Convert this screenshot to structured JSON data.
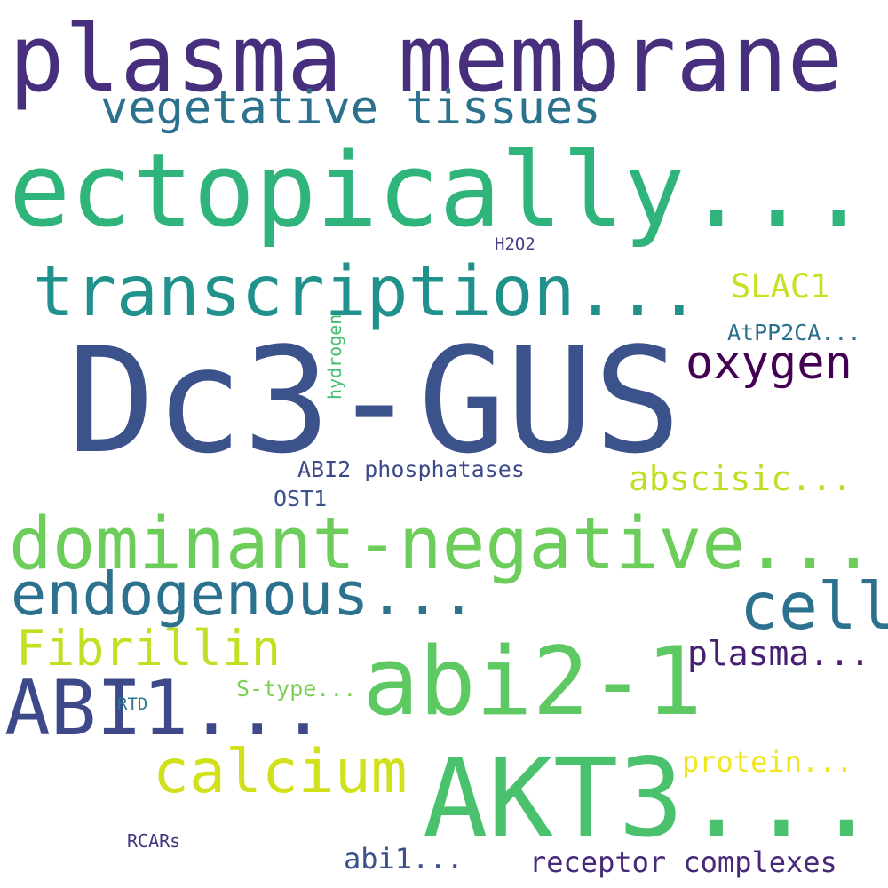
{
  "words": {
    "w0": {
      "text": "plasma membrane",
      "color": "#472f7d"
    },
    "w1": {
      "text": "vegetative tissues",
      "color": "#2c728e"
    },
    "w2": {
      "text": "ectopically...",
      "color": "#2fb47c"
    },
    "w3": {
      "text": "H2O2",
      "color": "#433e85"
    },
    "w4": {
      "text": "transcription...",
      "color": "#21918c"
    },
    "w5": {
      "text": "SLAC1",
      "color": "#c8e020"
    },
    "w6": {
      "text": "AtPP2CA...",
      "color": "#2d708e"
    },
    "w7": {
      "text": "oxygen",
      "color": "#440154"
    },
    "w8": {
      "text": "hydrogen",
      "color": "#44bf70"
    },
    "w9": {
      "text": "Dc3-GUS",
      "color": "#3b528b"
    },
    "w10": {
      "text": "ABI2 phosphatases",
      "color": "#3e4989"
    },
    "w11": {
      "text": "abscisic...",
      "color": "#bddf26"
    },
    "w12": {
      "text": "OST1",
      "color": "#3b528b"
    },
    "w13": {
      "text": "dominant-negative...",
      "color": "#6ccd5a"
    },
    "w14": {
      "text": "endogenous...",
      "color": "#2c728e"
    },
    "w15": {
      "text": "cell",
      "color": "#2c728e"
    },
    "w16": {
      "text": "Fibrillin",
      "color": "#c2df23"
    },
    "w17": {
      "text": "plasma...",
      "color": "#481f70"
    },
    "w18": {
      "text": "abi2-1",
      "color": "#5ec962"
    },
    "w19": {
      "text": "ABI1...",
      "color": "#3e4989"
    },
    "w20": {
      "text": "S-type...",
      "color": "#7ad151"
    },
    "w21": {
      "text": "RTD",
      "color": "#2a788e"
    },
    "w22": {
      "text": "calcium",
      "color": "#d0e11c"
    },
    "w23": {
      "text": "AKT3...",
      "color": "#4ac16d"
    },
    "w24": {
      "text": "protein...",
      "color": "#f1e51d"
    },
    "w25": {
      "text": "RCARs",
      "color": "#46337f"
    },
    "w26": {
      "text": "abi1...",
      "color": "#3b528b"
    },
    "w27": {
      "text": "receptor complexes",
      "color": "#482878"
    }
  }
}
